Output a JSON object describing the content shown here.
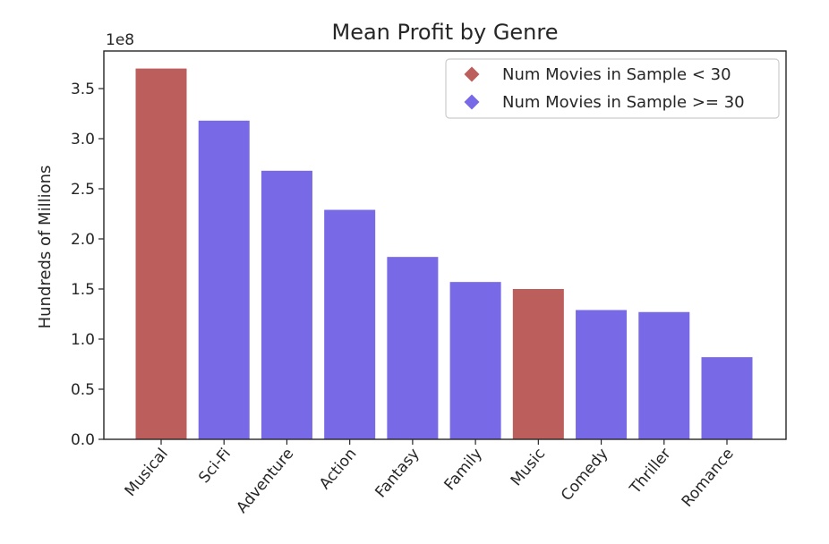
{
  "chart_data": {
    "type": "bar",
    "title": "Mean Profit by Genre",
    "xlabel": "",
    "ylabel": "Hundreds of Millions",
    "offset_label": "1e8",
    "ylim": [
      0,
      3.875
    ],
    "yticks": [
      "0.0",
      "0.5",
      "1.0",
      "1.5",
      "2.0",
      "2.5",
      "3.0",
      "3.5"
    ],
    "categories": [
      "Musical",
      "Sci-Fi",
      "Adventure",
      "Action",
      "Fantasy",
      "Family",
      "Music",
      "Comedy",
      "Thriller",
      "Romance"
    ],
    "values": [
      3.7,
      3.18,
      2.68,
      2.29,
      1.82,
      1.57,
      1.5,
      1.29,
      1.27,
      0.82
    ],
    "groups": [
      "lt30",
      "ge30",
      "ge30",
      "ge30",
      "ge30",
      "ge30",
      "lt30",
      "ge30",
      "ge30",
      "ge30"
    ],
    "legend": {
      "position": "top-right",
      "entries": [
        {
          "key": "lt30",
          "label": "Num Movies in Sample < 30",
          "color": "#bc5f5c"
        },
        {
          "key": "ge30",
          "label": "Num Movies in Sample >= 30",
          "color": "#7869e6"
        }
      ]
    },
    "grid": false
  }
}
